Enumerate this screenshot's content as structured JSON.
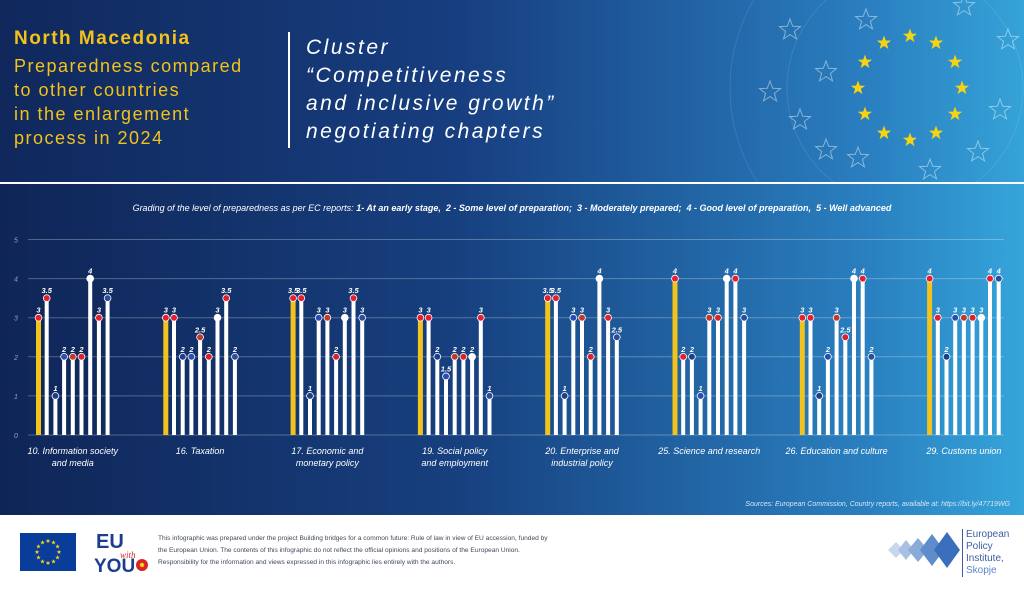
{
  "header": {
    "country": "North Macedonia",
    "subtitle_lines": [
      "Preparedness compared",
      "to other countries",
      "in the enlargement",
      "process in 2024"
    ],
    "cluster_lines": [
      "Cluster",
      "“Competitiveness",
      "and inclusive growth”",
      "negotiating chapters"
    ]
  },
  "legend": {
    "intro": "Grading of the level of preparedness as per EC reports:",
    "grades": [
      "1- At an early stage,",
      "2 - Some level of preparation;",
      "3 - Moderately prepared;",
      "4 - Good level of preparation,",
      "5 - Well advanced"
    ]
  },
  "source": "Sources: European Commission, Country reports, available at: https://bit.ly/47719WG",
  "footer": {
    "eu_logo_text": [
      "EU",
      "with",
      "YOU"
    ],
    "disclaimer": "This infographic was prepared under the project Building bridges for a common future: Rule of law in view of EU accession, funded by the European Union. The contents of this infographic do not reflect the official opinions and positions of the European Union. Responsibility for the information and views expressed in this infographic lies entirely with the authors.",
    "epi_lines": [
      "European",
      "Policy",
      "Institute,",
      "Skopje"
    ]
  },
  "colors": {
    "highlight_bar": "#f1c31c",
    "other_bar": "#ffffff",
    "title_yellow": "#f3c21a",
    "background_dark": "#10285c",
    "background_light": "#35a3d8"
  },
  "chart_data": {
    "type": "bar",
    "ylim": [
      0,
      5
    ],
    "yticks": [
      0,
      1,
      2,
      3,
      4,
      5
    ],
    "grid": true,
    "highlight_series": "North Macedonia",
    "groups": [
      {
        "label": [
          "10. Information society",
          "and media"
        ],
        "values": [
          3,
          3.5,
          1,
          2,
          2,
          2,
          4,
          3,
          3.5
        ]
      },
      {
        "label": [
          "16. Taxation"
        ],
        "values": [
          3,
          3,
          2,
          2,
          2.5,
          2,
          3,
          3.5,
          2
        ]
      },
      {
        "label": [
          "17. Economic and",
          "monetary policy"
        ],
        "values": [
          3.5,
          3.5,
          1,
          3,
          3,
          2,
          3,
          3.5,
          3
        ]
      },
      {
        "label": [
          "19. Social policy",
          "and employment"
        ],
        "values": [
          3,
          3,
          2,
          1.5,
          2,
          2,
          2,
          3,
          1
        ]
      },
      {
        "label": [
          "20. Enterprise and",
          "industrial policy"
        ],
        "values": [
          3.5,
          3.5,
          1,
          3,
          3,
          2,
          4,
          3,
          2.5
        ]
      },
      {
        "label": [
          "25. Science and research"
        ],
        "values": [
          4,
          2,
          2,
          1,
          3,
          3,
          4,
          4,
          3
        ]
      },
      {
        "label": [
          "26. Education and culture"
        ],
        "values": [
          3,
          3,
          1,
          2,
          3,
          2.5,
          4,
          4,
          2
        ]
      },
      {
        "label": [
          "29. Customs union"
        ],
        "values": [
          4,
          3,
          2,
          3,
          3,
          3,
          3,
          4,
          4
        ]
      }
    ]
  }
}
